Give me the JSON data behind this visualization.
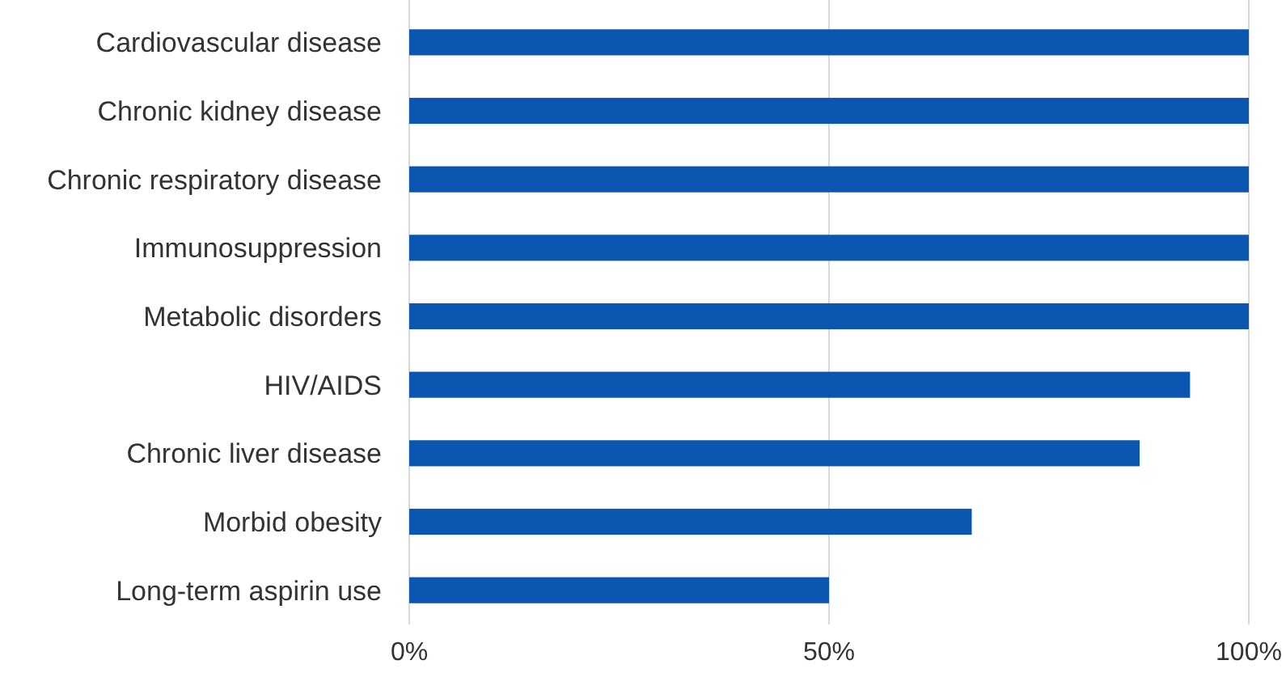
{
  "chart_data": {
    "type": "bar",
    "orientation": "horizontal",
    "categories": [
      "Cardiovascular disease",
      "Chronic kidney disease",
      "Chronic respiratory disease",
      "Immunosuppression",
      "Metabolic disorders",
      "HIV/AIDS",
      "Chronic liver disease",
      "Morbid obesity",
      "Long-term aspirin use"
    ],
    "values": [
      100,
      100,
      100,
      100,
      100,
      93,
      87,
      67,
      50
    ],
    "color": "#0b56b0",
    "xlim": [
      0,
      100
    ],
    "xticks": [
      {
        "value": 0,
        "label": "0%"
      },
      {
        "value": 50,
        "label": "50%"
      },
      {
        "value": 100,
        "label": "100%"
      }
    ],
    "grid": "x"
  }
}
